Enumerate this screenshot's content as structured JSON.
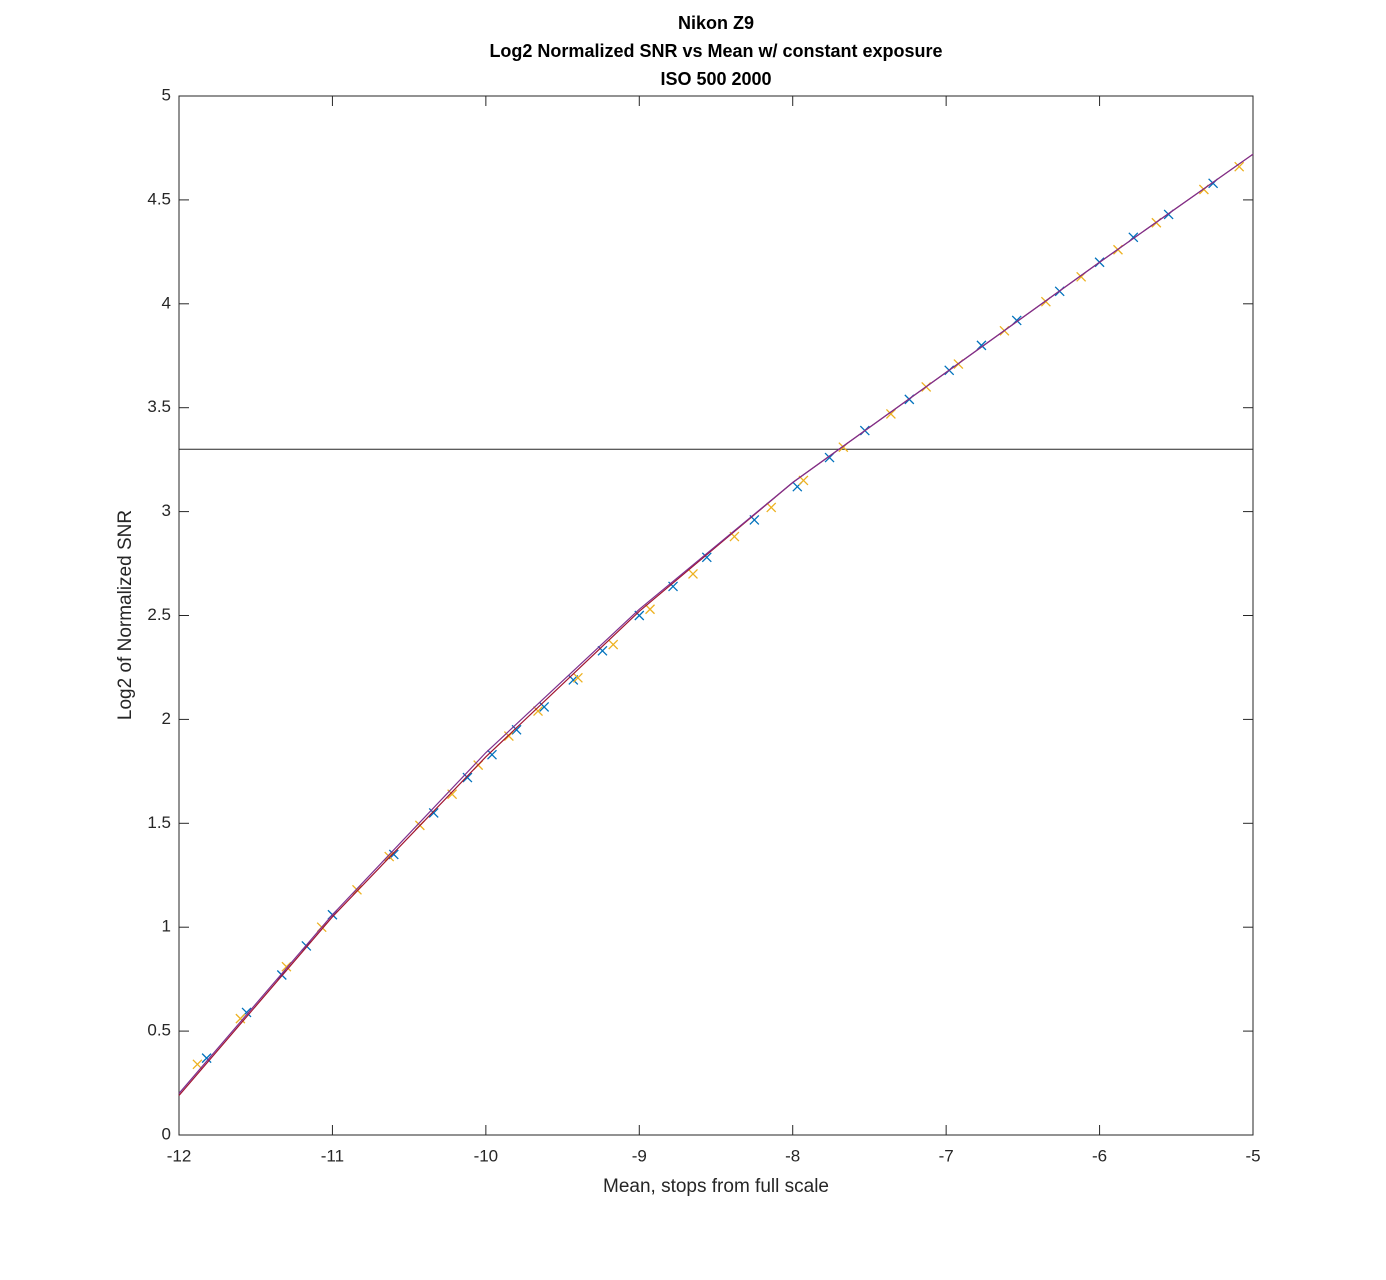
{
  "chart_data": {
    "type": "scatter",
    "title": [
      "Nikon Z9",
      "Log2 Normalized SNR vs Mean w/ constant exposure",
      "ISO 500  2000"
    ],
    "x_label": "Mean, stops from full scale",
    "y_label": "Log2 of Normalized SNR",
    "xlim": [
      -12,
      -5
    ],
    "ylim": [
      0,
      5
    ],
    "xticks": [
      -12,
      -11,
      -10,
      -9,
      -8,
      -7,
      -6,
      -5
    ],
    "yticks": [
      0,
      0.5,
      1,
      1.5,
      2,
      2.5,
      3,
      3.5,
      4,
      4.5,
      5
    ],
    "hline": 3.3,
    "series": [
      {
        "mode": "markers",
        "color": "#0072bd",
        "x": [
          -11.82,
          -11.56,
          -11.33,
          -11.17,
          -11.0,
          -10.6,
          -10.34,
          -10.12,
          -9.96,
          -9.8,
          -9.62,
          -9.43,
          -9.24,
          -9.0,
          -8.78,
          -8.56,
          -8.25,
          -7.97,
          -7.76,
          -7.53,
          -7.24,
          -6.98,
          -6.77,
          -6.54,
          -6.26,
          -6.0,
          -5.78,
          -5.55,
          -5.26
        ],
        "values": [
          0.37,
          0.59,
          0.77,
          0.91,
          1.06,
          1.35,
          1.55,
          1.72,
          1.83,
          1.95,
          2.06,
          2.19,
          2.33,
          2.5,
          2.64,
          2.78,
          2.96,
          3.12,
          3.26,
          3.39,
          3.54,
          3.68,
          3.8,
          3.92,
          4.06,
          4.2,
          4.32,
          4.43,
          4.58
        ]
      },
      {
        "mode": "markers",
        "color": "#edb120",
        "x": [
          -11.88,
          -11.6,
          -11.3,
          -11.07,
          -10.84,
          -10.63,
          -10.43,
          -10.22,
          -10.05,
          -9.85,
          -9.66,
          -9.4,
          -9.17,
          -8.93,
          -8.65,
          -8.38,
          -8.14,
          -7.93,
          -7.67,
          -7.36,
          -7.13,
          -6.92,
          -6.62,
          -6.35,
          -6.12,
          -5.88,
          -5.63,
          -5.32,
          -5.09
        ],
        "values": [
          0.34,
          0.56,
          0.81,
          1.0,
          1.18,
          1.34,
          1.49,
          1.64,
          1.78,
          1.92,
          2.04,
          2.2,
          2.36,
          2.53,
          2.7,
          2.88,
          3.02,
          3.15,
          3.31,
          3.47,
          3.6,
          3.71,
          3.87,
          4.01,
          4.13,
          4.26,
          4.39,
          4.55,
          4.66
        ]
      },
      {
        "mode": "line",
        "color": "#a2142f",
        "x": [
          -12,
          -11,
          -10,
          -9,
          -8,
          -7,
          -6,
          -5
        ],
        "values": [
          0.19,
          1.05,
          1.82,
          2.52,
          3.14,
          3.67,
          4.2,
          4.72
        ]
      },
      {
        "mode": "line",
        "color": "#7e2f8e",
        "x": [
          -12,
          -11,
          -10,
          -9,
          -8,
          -7,
          -6,
          -5
        ],
        "values": [
          0.2,
          1.06,
          1.84,
          2.53,
          3.14,
          3.67,
          4.2,
          4.72
        ]
      }
    ]
  }
}
